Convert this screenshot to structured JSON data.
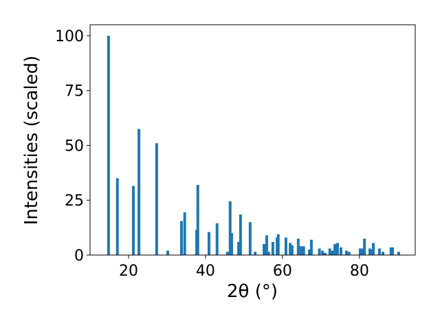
{
  "chart_data": {
    "type": "bar",
    "xlabel": "2θ (°)",
    "ylabel": "Intensities (scaled)",
    "color": "#1f77b4",
    "x": [
      14.8,
      17.1,
      21.25,
      22.7,
      27.3,
      30.2,
      33.75,
      34.6,
      37.7,
      38.0,
      40.9,
      43.0,
      45.7,
      46.4,
      46.8,
      48.6,
      49.1,
      51.6,
      52.9,
      55.2,
      55.9,
      56.4,
      57.5,
      58.6,
      58.9,
      60.9,
      62.0,
      62.5,
      64.1,
      64.8,
      65.5,
      67.0,
      67.5,
      69.6,
      70.4,
      71.1,
      72.3,
      72.9,
      73.6,
      74.3,
      75.2,
      76.6,
      77.3,
      80.2,
      80.7,
      81.3,
      82.7,
      83.2,
      83.6,
      85.2,
      86.1,
      88.2,
      88.6,
      90.2
    ],
    "values": [
      100,
      35,
      31.5,
      57.5,
      51,
      2,
      15.5,
      19.5,
      11.5,
      32,
      10.5,
      14.5,
      1.5,
      24.5,
      10,
      6,
      18.5,
      15,
      1.5,
      5,
      9,
      1.5,
      6,
      8,
      9.5,
      8,
      5.5,
      4.5,
      7.5,
      4,
      4,
      2.5,
      7,
      3,
      2,
      1,
      3,
      2,
      5,
      5.5,
      3.5,
      2,
      1.5,
      3,
      3,
      7.5,
      3,
      2.5,
      5.5,
      3,
      1.5,
      3.5,
      3.5,
      1.5
    ],
    "xlim": [
      10,
      94.5
    ],
    "ylim": [
      0,
      105
    ],
    "xticks": [
      20,
      40,
      60,
      80
    ],
    "yticks": [
      0,
      25,
      50,
      75,
      100
    ]
  }
}
